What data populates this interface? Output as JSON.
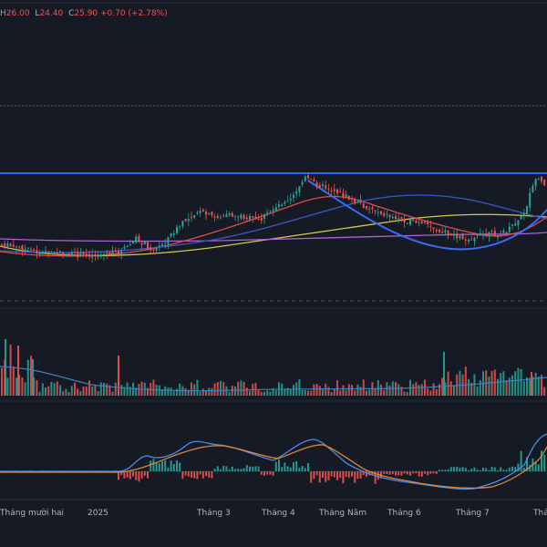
{
  "ohlc": {
    "h_label": "H",
    "h_value": "26.00",
    "l_label": "L",
    "l_value": "24.40",
    "c_label": "C",
    "c_value": "25.90",
    "change": "+0.70 (+2.78%)"
  },
  "colors": {
    "background": "#161a25",
    "up": "#26a69a",
    "down": "#ef5350",
    "resistance": "#2962ff",
    "ma_yellow": "#d4c94a",
    "ma_purple": "#b061d6",
    "ma_red": "#e04b4b",
    "ma_blue": "#3a57c8",
    "arc": "#3a6cf4",
    "macd": "#4a8ee8",
    "signal": "#e0853a",
    "volume_ma": "#3f7fbf"
  },
  "x_axis": {
    "labels": [
      "Tháng mười hai",
      "2025",
      "Tháng 3",
      "Tháng 4",
      "Tháng Năm",
      "Tháng 6",
      "Tháng 7",
      "Tháng"
    ]
  },
  "chart_data": {
    "type": "candlestick",
    "panes": [
      "price",
      "volume",
      "macd"
    ],
    "legend": {
      "high": 26.0,
      "low": 24.4,
      "close": 25.9,
      "change": 0.7,
      "change_pct": 2.78
    }
  }
}
